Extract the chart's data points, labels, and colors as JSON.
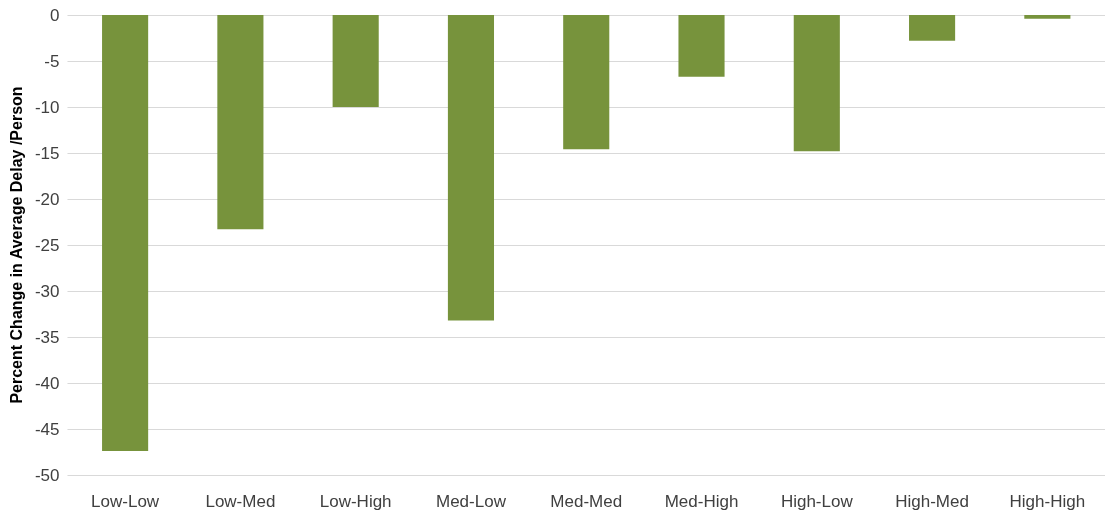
{
  "chart_data": {
    "type": "bar",
    "ylabel": "Percent Change in Average Delay /Person",
    "categories": [
      "Low-Low",
      "Low-Med",
      "Low-High",
      "Med-Low",
      "Med-Med",
      "Med-High",
      "High-Low",
      "High-Med",
      "High-High"
    ],
    "values": [
      -47.4,
      -23.3,
      -10.0,
      -33.2,
      -14.6,
      -6.7,
      -14.8,
      -2.8,
      -0.4
    ],
    "color": "#77933c",
    "ylim": [
      -50,
      0
    ],
    "yticks": [
      -50,
      -45,
      -40,
      -35,
      -30,
      -25,
      -20,
      -15,
      -10,
      -5,
      0
    ],
    "grid": "y"
  }
}
